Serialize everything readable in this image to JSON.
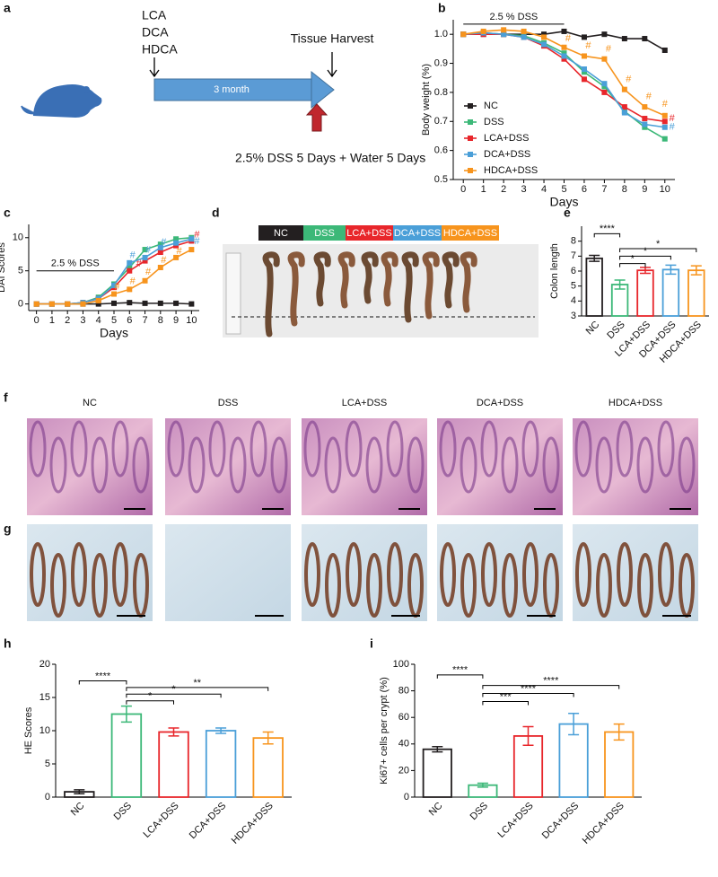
{
  "schematic": {
    "panel": "a",
    "compounds": [
      "LCA",
      "DCA",
      "HDCA"
    ],
    "harvest": "Tissue Harvest",
    "duration": "3 month",
    "treatment": "2.5% DSS 5 Days + Water 5 Days"
  },
  "photo": {
    "panel": "d",
    "groups": [
      "NC",
      "DSS",
      "LCA+DSS",
      "DCA+DSS",
      "HDCA+DSS"
    ],
    "colors": [
      "#231f20",
      "#3cb878",
      "#e8262b",
      "#4a9fd8",
      "#f7941d"
    ]
  },
  "histology": {
    "panels": [
      "f",
      "g"
    ],
    "labels": [
      "NC",
      "DSS",
      "LCA+DSS",
      "DCA+DSS",
      "HDCA+DSS"
    ]
  },
  "chart_data": [
    {
      "panel": "b",
      "type": "line",
      "xlabel": "Days",
      "ylabel": "Body weight (%)",
      "x": [
        0,
        1,
        2,
        3,
        4,
        5,
        6,
        7,
        8,
        9,
        10
      ],
      "xlim": [
        -0.5,
        10.5
      ],
      "xticks": [
        0,
        1,
        2,
        3,
        4,
        5,
        6,
        7,
        8,
        9,
        10
      ],
      "ylim": [
        0.5,
        1.05
      ],
      "yticks": [
        0.5,
        0.6,
        0.7,
        0.8,
        0.9,
        {
          "value": 1,
          "label": "1.0"
        }
      ],
      "annotation": {
        "text": "2.5 % DSS",
        "x": [
          0,
          5
        ],
        "y": 1.035
      },
      "legend": "left",
      "series": [
        {
          "name": "NC",
          "color": "#231f20",
          "values": [
            1.0,
            1.0,
            1.0,
            1.0,
            1.0,
            1.01,
            0.99,
            1.0,
            0.985,
            0.985,
            0.945
          ]
        },
        {
          "name": "DSS",
          "color": "#3cb878",
          "values": [
            1.0,
            1.005,
            1.0,
            0.995,
            0.97,
            0.935,
            0.87,
            0.82,
            0.735,
            0.68,
            0.64
          ]
        },
        {
          "name": "LCA+DSS",
          "color": "#e8262b",
          "values": [
            1.0,
            1.0,
            1.0,
            0.99,
            0.96,
            0.915,
            0.845,
            0.8,
            0.75,
            0.71,
            0.7
          ]
        },
        {
          "name": "DCA+DSS",
          "color": "#4a9fd8",
          "values": [
            1.0,
            1.005,
            1.0,
            0.99,
            0.965,
            0.925,
            0.88,
            0.83,
            0.73,
            0.69,
            0.68
          ]
        },
        {
          "name": "HDCA+DSS",
          "color": "#f7941d",
          "values": [
            1.0,
            1.01,
            1.015,
            1.01,
            0.99,
            0.955,
            0.925,
            0.915,
            0.81,
            0.75,
            0.72
          ]
        }
      ],
      "marks": [
        {
          "text": "#",
          "series": 4,
          "x": 5.2,
          "y": 0.985
        },
        {
          "text": "#",
          "series": 4,
          "x": 6.2,
          "y": 0.96
        },
        {
          "text": "#",
          "series": 4,
          "x": 7.2,
          "y": 0.95
        },
        {
          "text": "#",
          "series": 4,
          "x": 8.2,
          "y": 0.845
        },
        {
          "text": "#",
          "series": 4,
          "x": 9.2,
          "y": 0.785
        },
        {
          "text": "#",
          "series": 4,
          "x": 10,
          "y": 0.76
        },
        {
          "text": "#",
          "series": 2,
          "x": 10.35,
          "y": 0.71
        },
        {
          "text": "#",
          "series": 3,
          "x": 10.35,
          "y": 0.68
        }
      ]
    },
    {
      "panel": "c",
      "type": "line",
      "xlabel": "Days",
      "ylabel": "DAI Scores",
      "x": [
        0,
        1,
        2,
        3,
        4,
        5,
        6,
        7,
        8,
        9,
        10
      ],
      "xlim": [
        -0.5,
        10.5
      ],
      "xticks": [
        0,
        1,
        2,
        3,
        4,
        5,
        6,
        7,
        8,
        9,
        10
      ],
      "ylim": [
        -1,
        12
      ],
      "yticks": [
        0,
        5,
        10
      ],
      "annotation": {
        "text": "2.5 % DSS",
        "x": [
          0,
          5
        ],
        "y": 5
      },
      "series": [
        {
          "name": "NC",
          "color": "#231f20",
          "values": [
            0,
            0,
            0,
            0,
            0,
            0.1,
            0.2,
            0.1,
            0.1,
            0.1,
            0
          ]
        },
        {
          "name": "DSS",
          "color": "#3cb878",
          "values": [
            0,
            0,
            0,
            0.2,
            1,
            3,
            5.5,
            8.2,
            9,
            9.8,
            10
          ]
        },
        {
          "name": "LCA+DSS",
          "color": "#e8262b",
          "values": [
            0,
            0,
            0,
            0.2,
            0.8,
            2.5,
            5,
            6.5,
            7.8,
            8.8,
            9.5
          ]
        },
        {
          "name": "DCA+DSS",
          "color": "#4a9fd8",
          "values": [
            0,
            0,
            0,
            0.2,
            0.8,
            2.8,
            6.2,
            7,
            8.5,
            9.2,
            9.8
          ]
        },
        {
          "name": "HDCA+DSS",
          "color": "#f7941d",
          "values": [
            0,
            0,
            0,
            0,
            0.5,
            1.5,
            2.2,
            3.5,
            5.5,
            7,
            8.2
          ]
        }
      ],
      "marks": [
        {
          "text": "#",
          "series": 4,
          "x": 5.2,
          "y": 2.6
        },
        {
          "text": "#",
          "series": 4,
          "x": 6.2,
          "y": 3.4
        },
        {
          "text": "#",
          "series": 4,
          "x": 7.2,
          "y": 4.8
        },
        {
          "text": "#",
          "series": 4,
          "x": 8.2,
          "y": 6.6
        },
        {
          "text": "#",
          "series": 4,
          "x": 9.2,
          "y": 7.9
        },
        {
          "text": "#",
          "series": 3,
          "x": 6.2,
          "y": 7.3
        },
        {
          "text": "#",
          "series": 3,
          "x": 7.2,
          "y": 8.1
        },
        {
          "text": "#",
          "series": 3,
          "x": 8.2,
          "y": 9.3
        },
        {
          "text": "#",
          "series": 2,
          "x": 6.6,
          "y": 6.0
        },
        {
          "text": "#",
          "series": 2,
          "x": 10.35,
          "y": 10.4
        },
        {
          "text": "#",
          "series": 3,
          "x": 10.35,
          "y": 9.4
        }
      ]
    },
    {
      "panel": "e",
      "type": "bar",
      "ylabel": "Colon length",
      "categories": [
        "NC",
        "DSS",
        "LCA+DSS",
        "DCA+DSS",
        "HDCA+DSS"
      ],
      "values": [
        6.85,
        5.1,
        6.05,
        6.1,
        6.05
      ],
      "errors": [
        0.2,
        0.3,
        0.2,
        0.3,
        0.3
      ],
      "colors": [
        "#231f20",
        "#3cb878",
        "#e8262b",
        "#4a9fd8",
        "#f7941d"
      ],
      "ylim": [
        3,
        9
      ],
      "yticks": [
        3,
        4,
        5,
        6,
        7,
        8
      ],
      "brackets": [
        {
          "from": 0,
          "to": 1,
          "y": 8.5,
          "label": "****"
        },
        {
          "from": 1,
          "to": 2,
          "y": 6.5,
          "label": "*"
        },
        {
          "from": 1,
          "to": 3,
          "y": 7.0,
          "label": "*"
        },
        {
          "from": 1,
          "to": 4,
          "y": 7.5,
          "label": "*"
        }
      ]
    },
    {
      "panel": "h",
      "type": "bar",
      "ylabel": "HE Scores",
      "categories": [
        "NC",
        "DSS",
        "LCA+DSS",
        "DCA+DSS",
        "HDCA+DSS"
      ],
      "values": [
        0.8,
        12.5,
        9.8,
        10,
        8.9
      ],
      "errors": [
        0.3,
        1.2,
        0.6,
        0.4,
        0.9
      ],
      "colors": [
        "#231f20",
        "#3cb878",
        "#e8262b",
        "#4a9fd8",
        "#f7941d"
      ],
      "ylim": [
        0,
        20
      ],
      "yticks": [
        0,
        5,
        10,
        15,
        20
      ],
      "brackets": [
        {
          "from": 0,
          "to": 1,
          "y": 17.5,
          "label": "****"
        },
        {
          "from": 1,
          "to": 2,
          "y": 14.5,
          "label": "*"
        },
        {
          "from": 1,
          "to": 3,
          "y": 15.5,
          "label": "*"
        },
        {
          "from": 1,
          "to": 4,
          "y": 16.5,
          "label": "**"
        }
      ]
    },
    {
      "panel": "i",
      "type": "bar",
      "ylabel": "Ki67+ cells per crypt (%)",
      "categories": [
        "NC",
        "DSS",
        "LCA+DSS",
        "DCA+DSS",
        "HDCA+DSS"
      ],
      "values": [
        36,
        9,
        46,
        55,
        49
      ],
      "errors": [
        2,
        1.5,
        7,
        8,
        6
      ],
      "colors": [
        "#231f20",
        "#3cb878",
        "#e8262b",
        "#4a9fd8",
        "#f7941d"
      ],
      "ylim": [
        0,
        100
      ],
      "yticks": [
        0,
        20,
        40,
        60,
        80,
        100
      ],
      "brackets": [
        {
          "from": 0,
          "to": 1,
          "y": 92,
          "label": "****"
        },
        {
          "from": 1,
          "to": 2,
          "y": 72,
          "label": "***"
        },
        {
          "from": 1,
          "to": 3,
          "y": 78,
          "label": "****"
        },
        {
          "from": 1,
          "to": 4,
          "y": 84,
          "label": "****"
        }
      ]
    }
  ]
}
